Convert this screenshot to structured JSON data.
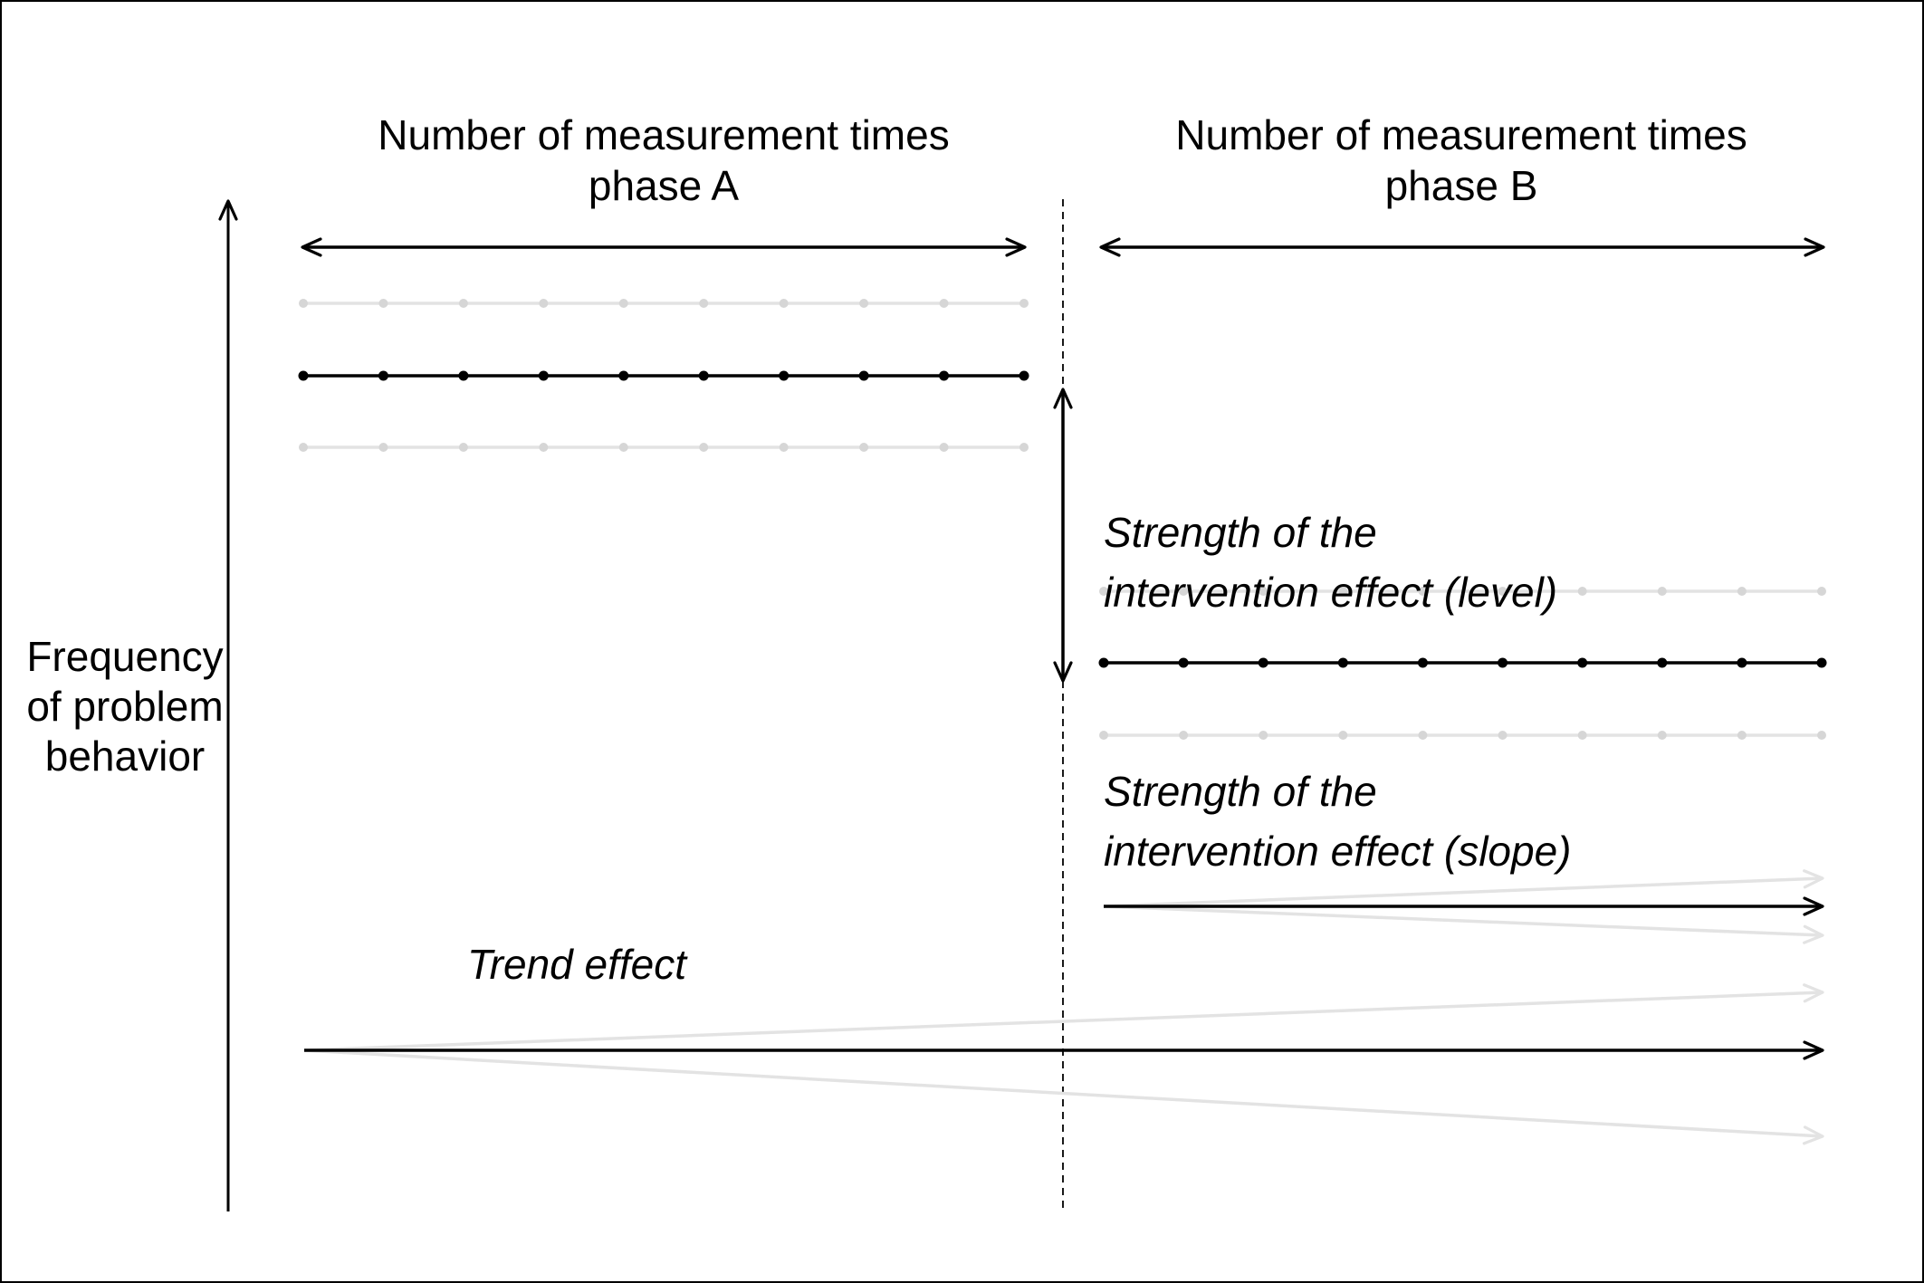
{
  "labels": {
    "phase_a_line1": "Number of measurement times",
    "phase_a_line2": "phase A",
    "phase_b_line1": "Number of measurement times",
    "phase_b_line2": "phase B",
    "y_axis_line1": "Frequency",
    "y_axis_line2": "of problem",
    "y_axis_line3": "behavior",
    "level_effect_line1": "Strength of the",
    "level_effect_line2": "intervention effect (level)",
    "slope_effect_line1": "Strength of the",
    "slope_effect_line2": "intervention effect (slope)",
    "trend_effect": "Trend effect"
  },
  "colors": {
    "main": "#000000",
    "variation": "#e3e3e3",
    "variation_point": "#d6d6d6"
  },
  "phases": {
    "phase_a_points": 10,
    "phase_b_points": 10
  }
}
